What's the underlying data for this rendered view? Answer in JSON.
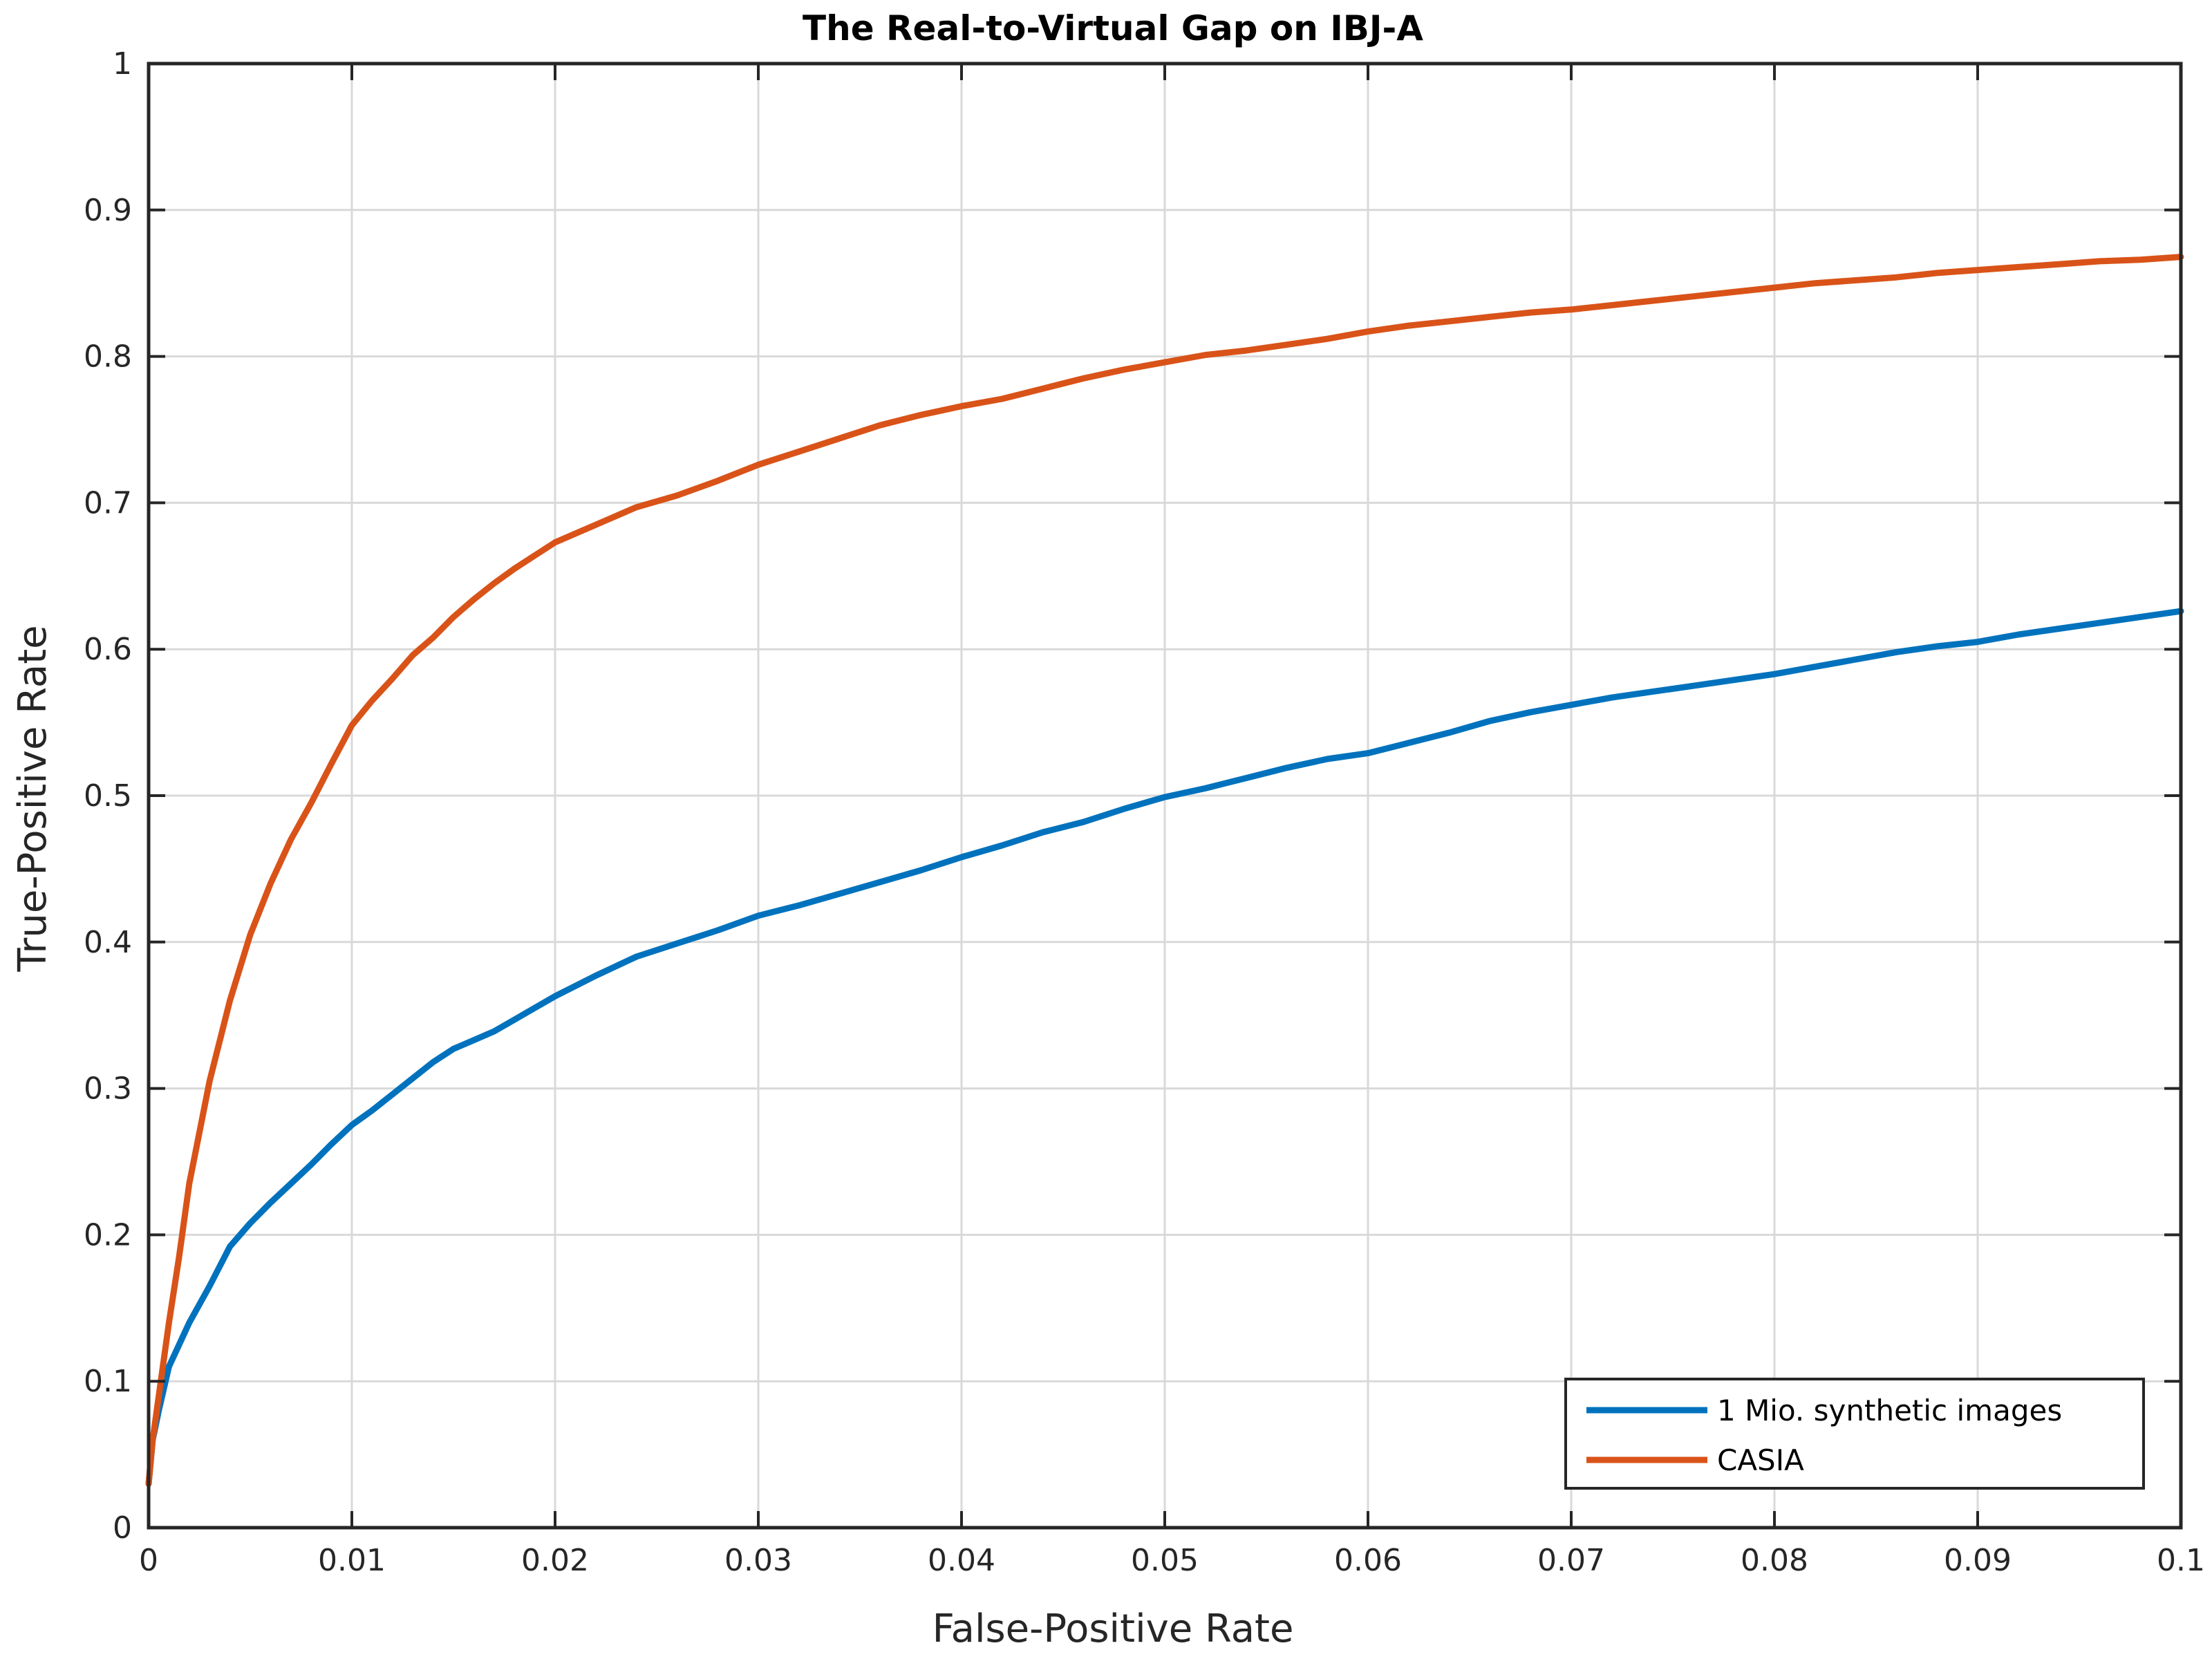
{
  "chart_data": {
    "type": "line",
    "title": "The Real-to-Virtual Gap on IBJ-A",
    "xlabel": "False-Positive Rate",
    "ylabel": "True-Positive Rate",
    "xlim": [
      0,
      0.1
    ],
    "ylim": [
      0,
      1
    ],
    "grid": true,
    "legend_position": "bottom-right",
    "x_ticks": [
      0,
      0.01,
      0.02,
      0.03,
      0.04,
      0.05,
      0.06,
      0.07,
      0.08,
      0.09,
      0.1
    ],
    "x_tick_labels": [
      "0",
      "0.01",
      "0.02",
      "0.03",
      "0.04",
      "0.05",
      "0.06",
      "0.07",
      "0.08",
      "0.09",
      "0.1"
    ],
    "y_ticks": [
      0,
      0.1,
      0.2,
      0.3,
      0.4,
      0.5,
      0.6,
      0.7,
      0.8,
      0.9,
      1
    ],
    "y_tick_labels": [
      "0",
      "0.1",
      "0.2",
      "0.3",
      "0.4",
      "0.5",
      "0.6",
      "0.7",
      "0.8",
      "0.9",
      "1"
    ],
    "series": [
      {
        "name": "1 Mio. synthetic images",
        "color": "#0072bd",
        "x": [
          0,
          0.0002,
          0.0005,
          0.001,
          0.0015,
          0.002,
          0.003,
          0.004,
          0.005,
          0.006,
          0.007,
          0.008,
          0.009,
          0.01,
          0.011,
          0.012,
          0.013,
          0.014,
          0.015,
          0.016,
          0.017,
          0.018,
          0.019,
          0.02,
          0.022,
          0.024,
          0.026,
          0.028,
          0.03,
          0.032,
          0.034,
          0.036,
          0.038,
          0.04,
          0.042,
          0.044,
          0.046,
          0.048,
          0.05,
          0.052,
          0.054,
          0.056,
          0.058,
          0.06,
          0.062,
          0.064,
          0.066,
          0.068,
          0.07,
          0.072,
          0.074,
          0.076,
          0.078,
          0.08,
          0.082,
          0.084,
          0.086,
          0.088,
          0.09,
          0.092,
          0.094,
          0.096,
          0.098,
          0.1
        ],
        "y": [
          0.03,
          0.06,
          0.08,
          0.11,
          0.125,
          0.14,
          0.165,
          0.192,
          0.208,
          0.222,
          0.235,
          0.248,
          0.262,
          0.275,
          0.285,
          0.296,
          0.307,
          0.318,
          0.327,
          0.333,
          0.339,
          0.347,
          0.355,
          0.363,
          0.377,
          0.39,
          0.399,
          0.408,
          0.418,
          0.425,
          0.433,
          0.441,
          0.449,
          0.458,
          0.466,
          0.475,
          0.482,
          0.491,
          0.499,
          0.505,
          0.512,
          0.519,
          0.525,
          0.529,
          0.536,
          0.543,
          0.551,
          0.557,
          0.562,
          0.567,
          0.571,
          0.575,
          0.579,
          0.583,
          0.588,
          0.593,
          0.598,
          0.602,
          0.605,
          0.61,
          0.614,
          0.618,
          0.622,
          0.626
        ]
      },
      {
        "name": "CASIA",
        "color": "#d95319",
        "x": [
          0,
          0.0002,
          0.0005,
          0.001,
          0.0015,
          0.002,
          0.003,
          0.004,
          0.005,
          0.006,
          0.007,
          0.008,
          0.009,
          0.01,
          0.011,
          0.012,
          0.013,
          0.014,
          0.015,
          0.016,
          0.017,
          0.018,
          0.019,
          0.02,
          0.022,
          0.024,
          0.026,
          0.028,
          0.03,
          0.032,
          0.034,
          0.036,
          0.038,
          0.04,
          0.042,
          0.044,
          0.046,
          0.048,
          0.05,
          0.052,
          0.054,
          0.056,
          0.058,
          0.06,
          0.062,
          0.064,
          0.066,
          0.068,
          0.07,
          0.072,
          0.074,
          0.076,
          0.078,
          0.08,
          0.082,
          0.084,
          0.086,
          0.088,
          0.09,
          0.092,
          0.094,
          0.096,
          0.098,
          0.1
        ],
        "y": [
          0.03,
          0.06,
          0.09,
          0.14,
          0.185,
          0.235,
          0.305,
          0.36,
          0.405,
          0.44,
          0.47,
          0.495,
          0.522,
          0.548,
          0.565,
          0.58,
          0.596,
          0.608,
          0.622,
          0.634,
          0.645,
          0.655,
          0.664,
          0.673,
          0.685,
          0.697,
          0.705,
          0.715,
          0.726,
          0.735,
          0.744,
          0.753,
          0.76,
          0.766,
          0.771,
          0.778,
          0.785,
          0.791,
          0.796,
          0.801,
          0.804,
          0.808,
          0.812,
          0.817,
          0.821,
          0.824,
          0.827,
          0.83,
          0.832,
          0.835,
          0.838,
          0.841,
          0.844,
          0.847,
          0.85,
          0.852,
          0.854,
          0.857,
          0.859,
          0.861,
          0.863,
          0.865,
          0.866,
          0.868
        ]
      }
    ]
  }
}
